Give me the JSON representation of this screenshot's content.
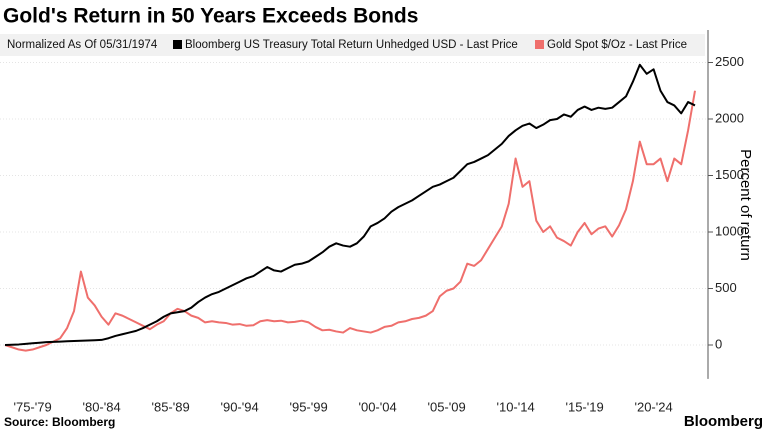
{
  "chart_data": {
    "type": "line",
    "title": "Gold's Return in 50 Years Exceeds Bonds",
    "subtitle": "Normalized As Of 05/31/1974",
    "y_label": "Percent of return",
    "source": "Source: Bloomberg",
    "brand": "Bloomberg",
    "y_axis_side": "right",
    "grid": true,
    "ylim": [
      -300,
      2750
    ],
    "yticks": [
      0,
      500,
      1000,
      1500,
      2000,
      2500
    ],
    "categories": [
      null,
      null,
      null,
      null,
      "'75-'79",
      null,
      null,
      null,
      null,
      null,
      null,
      null,
      null,
      null,
      "'80-'84",
      null,
      null,
      null,
      null,
      null,
      null,
      null,
      null,
      null,
      "'85-'89",
      null,
      null,
      null,
      null,
      null,
      null,
      null,
      null,
      null,
      "'90-'94",
      null,
      null,
      null,
      null,
      null,
      null,
      null,
      null,
      null,
      "'95-'99",
      null,
      null,
      null,
      null,
      null,
      null,
      null,
      null,
      null,
      "'00-'04",
      null,
      null,
      null,
      null,
      null,
      null,
      null,
      null,
      null,
      "'05-'09",
      null,
      null,
      null,
      null,
      null,
      null,
      null,
      null,
      null,
      "'10-'14",
      null,
      null,
      null,
      null,
      null,
      null,
      null,
      null,
      null,
      "'15-'19",
      null,
      null,
      null,
      null,
      null,
      null,
      null,
      null,
      null,
      "'20-'24",
      null,
      null,
      null,
      null,
      null,
      null
    ],
    "series": [
      {
        "name": "Bloomberg US Treasury Total Return Unhedged USD - Last Price",
        "color": "#000000",
        "values": [
          0,
          2,
          5,
          10,
          15,
          20,
          25,
          28,
          30,
          33,
          35,
          38,
          40,
          42,
          45,
          60,
          80,
          95,
          110,
          125,
          150,
          180,
          210,
          250,
          280,
          290,
          300,
          330,
          380,
          420,
          450,
          470,
          500,
          530,
          560,
          590,
          610,
          650,
          690,
          660,
          650,
          680,
          710,
          720,
          740,
          780,
          820,
          870,
          900,
          880,
          870,
          900,
          960,
          1050,
          1080,
          1120,
          1180,
          1220,
          1250,
          1280,
          1320,
          1360,
          1400,
          1420,
          1450,
          1480,
          1540,
          1600,
          1620,
          1650,
          1680,
          1730,
          1780,
          1850,
          1900,
          1940,
          1960,
          1920,
          1950,
          1990,
          2000,
          2040,
          2020,
          2080,
          2110,
          2080,
          2100,
          2090,
          2100,
          2150,
          2200,
          2330,
          2480,
          2400,
          2440,
          2250,
          2150,
          2120,
          2050,
          2150,
          2120
        ]
      },
      {
        "name": "Gold Spot $/Oz - Last Price",
        "color": "#ef6f6c",
        "values": [
          0,
          -20,
          -40,
          -50,
          -40,
          -20,
          0,
          30,
          60,
          150,
          300,
          650,
          420,
          350,
          250,
          180,
          280,
          260,
          230,
          200,
          170,
          140,
          180,
          210,
          280,
          320,
          300,
          260,
          240,
          200,
          210,
          200,
          195,
          180,
          185,
          170,
          175,
          210,
          220,
          210,
          215,
          200,
          205,
          215,
          200,
          160,
          130,
          135,
          120,
          110,
          150,
          130,
          120,
          110,
          130,
          160,
          170,
          200,
          210,
          230,
          240,
          260,
          300,
          430,
          480,
          500,
          560,
          720,
          700,
          750,
          850,
          950,
          1050,
          1250,
          1650,
          1400,
          1450,
          1100,
          1000,
          1050,
          950,
          920,
          880,
          1000,
          1080,
          980,
          1030,
          1050,
          960,
          1060,
          1200,
          1450,
          1800,
          1600,
          1600,
          1650,
          1450,
          1650,
          1600,
          1900,
          2250
        ]
      }
    ]
  }
}
